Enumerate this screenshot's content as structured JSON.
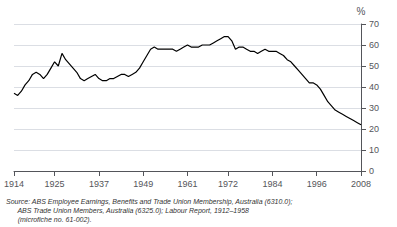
{
  "chart_data": {
    "type": "line",
    "ylabel": "%",
    "annotations": [
      "Source: ABS Employee Earnings, Benefits and Trade Union Membership, Australia (6310.0);\n      ABS Trade Union Members, Australia (6325.0); Labour Report, 1912–1958\n      (microfiche no. 61-002)."
    ],
    "x": [
      1914,
      1915,
      1916,
      1917,
      1918,
      1919,
      1920,
      1921,
      1922,
      1923,
      1924,
      1925,
      1926,
      1927,
      1928,
      1929,
      1930,
      1931,
      1932,
      1933,
      1934,
      1935,
      1936,
      1937,
      1938,
      1939,
      1940,
      1941,
      1942,
      1943,
      1944,
      1945,
      1946,
      1947,
      1948,
      1949,
      1950,
      1951,
      1952,
      1953,
      1954,
      1955,
      1956,
      1957,
      1958,
      1959,
      1960,
      1961,
      1962,
      1963,
      1964,
      1965,
      1966,
      1967,
      1968,
      1969,
      1970,
      1971,
      1972,
      1973,
      1974,
      1975,
      1976,
      1977,
      1978,
      1979,
      1980,
      1981,
      1982,
      1983,
      1984,
      1985,
      1986,
      1987,
      1988,
      1989,
      1990,
      1991,
      1992,
      1993,
      1994,
      1995,
      1996,
      1997,
      1998,
      1999,
      2000,
      2001,
      2002,
      2003,
      2004,
      2005,
      2006,
      2007,
      2008
    ],
    "values": [
      37,
      36,
      38,
      41,
      43,
      46,
      47,
      46,
      44,
      46,
      49,
      52,
      50,
      56,
      53,
      51,
      49,
      47,
      44,
      43,
      44,
      45,
      46,
      44,
      43,
      43,
      44,
      44,
      45,
      46,
      46,
      45,
      46,
      47,
      49,
      52,
      55,
      58,
      59,
      58,
      58,
      58,
      58,
      58,
      57,
      58,
      59,
      60,
      59,
      59,
      59,
      60,
      60,
      60,
      61,
      62,
      63,
      64,
      64,
      62,
      58,
      59,
      59,
      58,
      57,
      57,
      56,
      57,
      58,
      57,
      57,
      57,
      56,
      55,
      53,
      52,
      50,
      48,
      46,
      44,
      42,
      42,
      41,
      39,
      36,
      33,
      31,
      29,
      28,
      27,
      26,
      25,
      24,
      23,
      22
    ],
    "color": "#000000",
    "xlim": [
      1914,
      2008
    ],
    "xticks": [
      1914,
      1925,
      1937,
      1949,
      1961,
      1972,
      1984,
      1996,
      2008
    ],
    "ylim": [
      0,
      70
    ],
    "yticks": [
      0,
      10,
      20,
      30,
      40,
      50,
      60,
      70
    ],
    "grid": true
  }
}
